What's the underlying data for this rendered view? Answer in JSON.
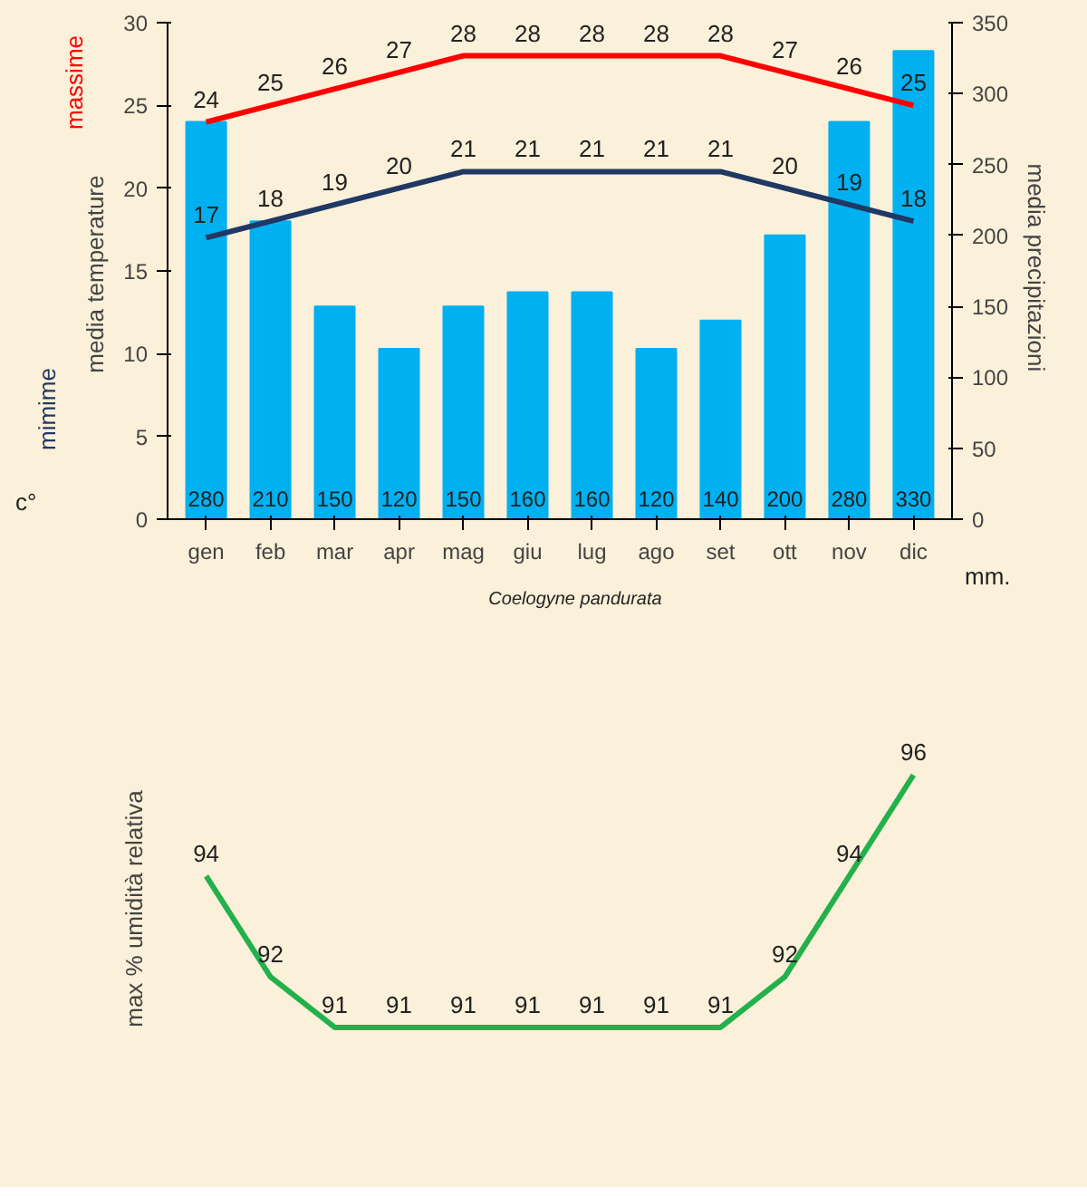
{
  "chart_data": [
    {
      "type": "bar",
      "categories": [
        "gen",
        "feb",
        "mar",
        "apr",
        "mag",
        "giu",
        "lug",
        "ago",
        "set",
        "ott",
        "nov",
        "dic"
      ],
      "ylabel": "media  temperature",
      "y2label": "media  precipitazioni",
      "ylim": [
        0,
        30
      ],
      "yticks": [
        0,
        5,
        10,
        15,
        20,
        25,
        30
      ],
      "y2lim": [
        0,
        350
      ],
      "y2ticks": [
        0,
        50,
        100,
        150,
        200,
        250,
        300,
        350
      ],
      "series": [
        {
          "type": "bar",
          "axis": "y2",
          "color": "#00b0f0",
          "values": [
            280,
            210,
            150,
            120,
            150,
            160,
            160,
            120,
            140,
            200,
            280,
            330
          ]
        },
        {
          "type": "line",
          "name": "massime",
          "color": "#ff0000",
          "values": [
            24,
            25,
            26,
            27,
            28,
            28,
            28,
            28,
            28,
            27,
            26,
            25
          ]
        },
        {
          "type": "line",
          "name": "mimime",
          "color": "#203864",
          "values": [
            17,
            18,
            19,
            20,
            21,
            21,
            21,
            21,
            21,
            20,
            19,
            18
          ]
        }
      ],
      "data_labels": true,
      "grid": false,
      "annotations": [
        "c°",
        "mm.",
        "Coelogyne pandurata"
      ]
    },
    {
      "type": "line",
      "categories": [
        null,
        null,
        null,
        null,
        null,
        null,
        null,
        null,
        null,
        null,
        null,
        null
      ],
      "ylabel": "max % umidità relativa",
      "tick_labels": false,
      "data_labels": true,
      "grid": false,
      "series": [
        {
          "color": "#22b14c",
          "values": [
            94,
            92,
            91,
            91,
            91,
            91,
            91,
            91,
            91,
            92,
            94,
            96
          ]
        }
      ]
    }
  ]
}
